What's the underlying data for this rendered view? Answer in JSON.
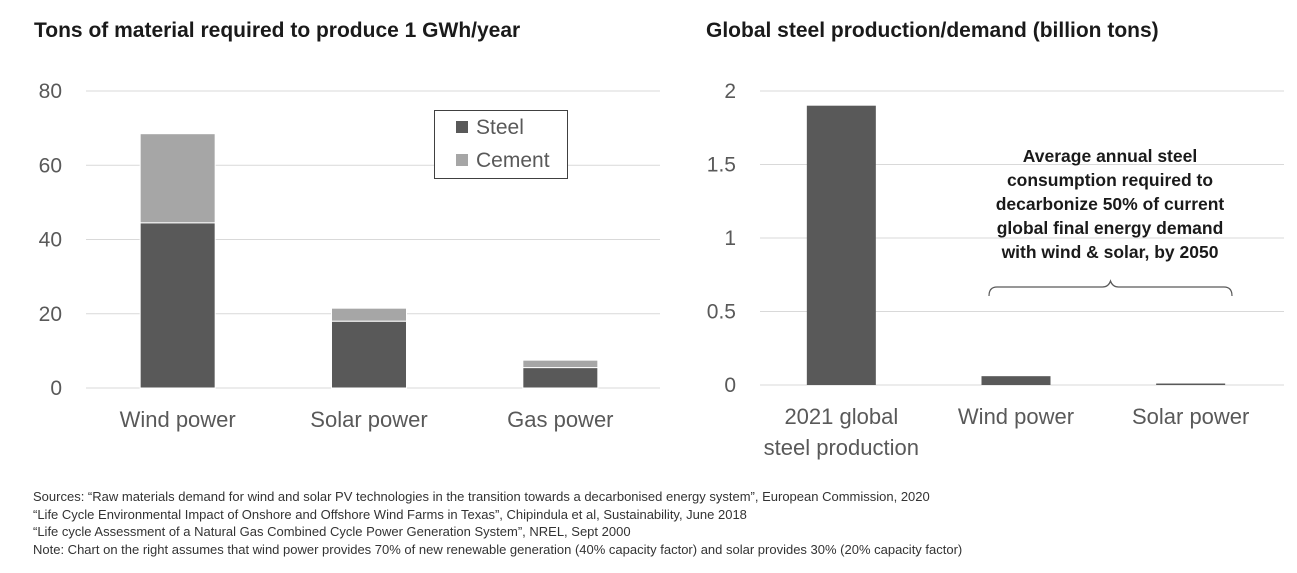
{
  "colors": {
    "steel": "#595959",
    "cement": "#a6a6a6",
    "grid": "#d9d9d9",
    "text": "#595959"
  },
  "chart_data": [
    {
      "type": "bar",
      "stacked": true,
      "title": "Tons of material required to produce 1 GWh/year",
      "categories": [
        "Wind power",
        "Solar power",
        "Gas power"
      ],
      "series": [
        {
          "name": "Steel",
          "values": [
            44.5,
            18,
            5.5
          ]
        },
        {
          "name": "Cement",
          "values": [
            24,
            3.5,
            2
          ]
        }
      ],
      "ylim": [
        0,
        80
      ],
      "yticks": [
        "0",
        "20",
        "40",
        "60",
        "80"
      ],
      "grid": true,
      "legend_position": "top-right"
    },
    {
      "type": "bar",
      "title": "Global steel production/demand (billion tons)",
      "categories": [
        [
          "2021 global",
          "steel production"
        ],
        [
          "Wind power"
        ],
        [
          "Solar power"
        ]
      ],
      "values": [
        1.9,
        0.06,
        0.01
      ],
      "ylim": [
        0,
        2
      ],
      "yticks": [
        "0",
        "0.5",
        "1",
        "1.5",
        "2"
      ],
      "grid": true,
      "annotation": [
        "Average annual steel",
        "consumption required to",
        "decarbonize 50% of current",
        "global final energy demand",
        "with wind & solar, by 2050"
      ]
    }
  ],
  "sources": [
    "Sources:  “Raw materials demand for wind and solar PV technologies in the transition towards a decarbonised energy system”, European Commission,  2020",
    "“Life Cycle Environmental Impact of Onshore and Offshore Wind Farms in Texas”, Chipindula et al,  Sustainability, June 2018",
    "“Life cycle Assessment of a Natural Gas Combined Cycle Power Generation System”, NREL, Sept 2000",
    "Note: Chart on the right assumes that wind power provides 70% of new renewable generation (40% capacity factor) and solar provides 30% (20% capacity factor)"
  ]
}
